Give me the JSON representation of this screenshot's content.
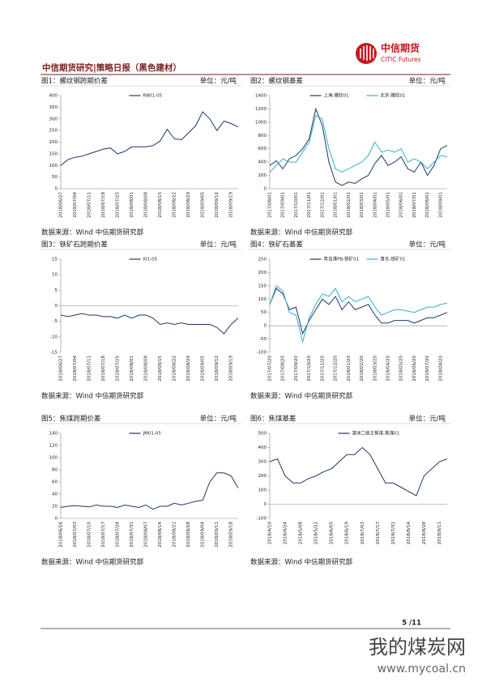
{
  "header": {
    "logo_name": "中信期货",
    "logo_en": "CITIC Futures",
    "title": "中信期货研究|策略日报（黑色建材）"
  },
  "chart_data": [
    {
      "type": "line",
      "title": "图1：螺纹钢跨期价差",
      "unit": "单位：元/吨",
      "source": "数据来源：Wind 中信期货研究部",
      "categories": [
        "2018/06/27",
        null,
        "2018/07/04",
        null,
        "2018/07/11",
        null,
        "2018/07/18",
        null,
        "2018/07/25",
        null,
        "2018/08/01",
        null,
        "2018/08/08",
        null,
        "2018/08/15",
        null,
        "2018/08/22",
        null,
        "2018/08/29",
        null,
        "2018/09/05",
        null,
        "2018/09/12",
        null,
        "2018/09/19",
        null
      ],
      "series": [
        {
          "name": "RB01-05",
          "color": "#1f3864",
          "values": [
            100,
            125,
            135,
            140,
            150,
            160,
            170,
            175,
            150,
            160,
            180,
            180,
            180,
            185,
            205,
            255,
            215,
            210,
            240,
            270,
            330,
            300,
            250,
            290,
            280,
            265
          ]
        }
      ],
      "ylim": [
        0,
        400
      ],
      "yticks": [
        0,
        50,
        100,
        150,
        200,
        250,
        300,
        350,
        400
      ]
    },
    {
      "type": "line",
      "title": "图2：螺纹钢基差",
      "unit": "单位：元/吨",
      "source": "数据来源：Wind 中信期货研究部",
      "categories": [
        "2017/08/01",
        null,
        "2017/09/01",
        null,
        "2017/10/01",
        null,
        "2017/11/01",
        null,
        "2017/12/01",
        null,
        "2018/01/01",
        null,
        "2018/02/01",
        null,
        "2018/03/01",
        null,
        "2018/04/01",
        null,
        "2018/05/01",
        null,
        "2018/06/01",
        null,
        "2018/07/01",
        null,
        "2018/08/01",
        null,
        "2018/09/01",
        null
      ],
      "series": [
        {
          "name": "上海-螺纹01",
          "color": "#1f3864",
          "values": [
            350,
            420,
            300,
            450,
            500,
            600,
            750,
            1200,
            950,
            400,
            100,
            50,
            100,
            80,
            150,
            200,
            380,
            500,
            350,
            400,
            480,
            300,
            250,
            400,
            200,
            350,
            600,
            650
          ]
        },
        {
          "name": "北京-螺纹01",
          "color": "#35b0c8",
          "values": [
            250,
            350,
            450,
            400,
            400,
            550,
            700,
            1100,
            1050,
            600,
            300,
            250,
            300,
            350,
            400,
            500,
            700,
            550,
            580,
            550,
            600,
            400,
            450,
            400,
            300,
            400,
            500,
            480
          ]
        }
      ],
      "ylim": [
        0,
        1400
      ],
      "yticks": [
        0,
        200,
        400,
        600,
        800,
        1000,
        1200,
        1400
      ]
    },
    {
      "type": "line",
      "title": "图3：铁矿石跨期价差",
      "unit": "单位：元/吨",
      "source": "数据来源：Wind 中信期货研究部",
      "categories": [
        "2018/06/27",
        null,
        "2018/07/04",
        null,
        "2018/07/11",
        null,
        "2018/07/18",
        null,
        "2018/07/25",
        null,
        "2018/08/01",
        null,
        "2018/08/08",
        null,
        "2018/08/15",
        null,
        "2018/08/22",
        null,
        "2018/08/29",
        null,
        "2018/09/05",
        null,
        "2018/09/12",
        null,
        "2018/09/19",
        null
      ],
      "series": [
        {
          "name": "I01-05",
          "color": "#1f3864",
          "values": [
            -3,
            -3.5,
            -3,
            -2.5,
            -3,
            -3,
            -3.5,
            -3.5,
            -4,
            -3,
            -4,
            -3,
            -3,
            -4,
            -6,
            -5.5,
            -6,
            -5.5,
            -6,
            -6,
            -6,
            -6,
            -7,
            -9,
            -6,
            -4
          ]
        }
      ],
      "ylim": [
        -15,
        15
      ],
      "yticks": [
        -15,
        -10,
        -5,
        0,
        5,
        10,
        15
      ]
    },
    {
      "type": "line",
      "title": "图4：铁矿石基差",
      "unit": "单位：元/吨",
      "source": "数据来源：Wind 中信期货研究部",
      "categories": [
        "2017/07/20",
        null,
        "2017/08/20",
        null,
        "2017/09/20",
        null,
        "2017/10/20",
        null,
        "2017/11/20",
        null,
        "2017/12/20",
        null,
        "2018/01/20",
        null,
        "2018/02/20",
        null,
        "2018/03/20",
        null,
        "2018/04/20",
        null,
        "2018/05/20",
        null,
        "2018/06/20",
        null,
        "2018/07/20",
        null,
        "2018/08/20",
        null
      ],
      "series": [
        {
          "name": "青岛港PB-铁矿01",
          "color": "#1f3864",
          "values": [
            80,
            140,
            120,
            60,
            70,
            -30,
            20,
            60,
            100,
            80,
            110,
            60,
            90,
            60,
            70,
            80,
            40,
            10,
            10,
            20,
            20,
            20,
            10,
            20,
            30,
            30,
            40,
            50
          ]
        },
        {
          "name": "普氏-铁矿01",
          "color": "#35b0c8",
          "values": [
            80,
            150,
            130,
            50,
            40,
            -60,
            30,
            80,
            120,
            110,
            140,
            90,
            110,
            90,
            100,
            110,
            70,
            40,
            50,
            60,
            60,
            55,
            50,
            60,
            70,
            70,
            80,
            85
          ]
        }
      ],
      "ylim": [
        -100,
        250
      ],
      "yticks": [
        -100,
        -50,
        0,
        50,
        100,
        150,
        200,
        250
      ]
    },
    {
      "type": "line",
      "title": "图5：焦煤跨期价差",
      "unit": "单位：元/吨",
      "source": "数据来源：Wind 中信期货研究部",
      "categories": [
        "2018/06/26",
        null,
        "2018/07/03",
        null,
        "2018/07/10",
        null,
        "2018/07/17",
        null,
        "2018/07/24",
        null,
        "2018/07/31",
        null,
        "2018/08/07",
        null,
        "2018/08/14",
        null,
        "2018/08/21",
        null,
        "2018/08/28",
        null,
        "2018/09/04",
        null,
        "2018/09/11",
        null,
        "2018/09/18",
        null
      ],
      "series": [
        {
          "name": "JM01-05",
          "color": "#1f3864",
          "values": [
            18,
            20,
            21,
            20,
            19,
            22,
            20,
            20,
            18,
            22,
            20,
            18,
            22,
            15,
            20,
            20,
            25,
            22,
            25,
            28,
            30,
            60,
            75,
            75,
            70,
            50
          ]
        }
      ],
      "ylim": [
        0,
        140
      ],
      "yticks": [
        0,
        20,
        40,
        60,
        80,
        100,
        120,
        140
      ]
    },
    {
      "type": "line",
      "title": "图6：焦煤基差",
      "unit": "单位：元/吨",
      "source": "数据来源：Wind 中信期货研究部",
      "categories": [
        "2018/4/10",
        null,
        "2018/4/24",
        null,
        "2018/5/08",
        null,
        "2018/5/22",
        null,
        "2018/6/05",
        null,
        "2018/6/19",
        null,
        "2018/7/03",
        null,
        "2018/7/17",
        null,
        "2018/7/31",
        null,
        "2018/8/14",
        null,
        "2018/8/28",
        null,
        "2018/9/11",
        null
      ],
      "series": [
        {
          "name": "澳洲二级主焦煤-焦煤01",
          "color": "#1f3864",
          "values": [
            300,
            320,
            200,
            150,
            150,
            180,
            200,
            230,
            250,
            300,
            350,
            350,
            400,
            350,
            250,
            150,
            150,
            120,
            90,
            60,
            200,
            250,
            300,
            320
          ]
        }
      ],
      "ylim": [
        -100,
        500
      ],
      "yticks": [
        -100,
        0,
        100,
        200,
        300,
        400,
        500
      ]
    }
  ],
  "footer": {
    "page": "5 /11"
  },
  "watermark": {
    "name": "我的煤炭网",
    "url": "www.mycoal.cn"
  }
}
